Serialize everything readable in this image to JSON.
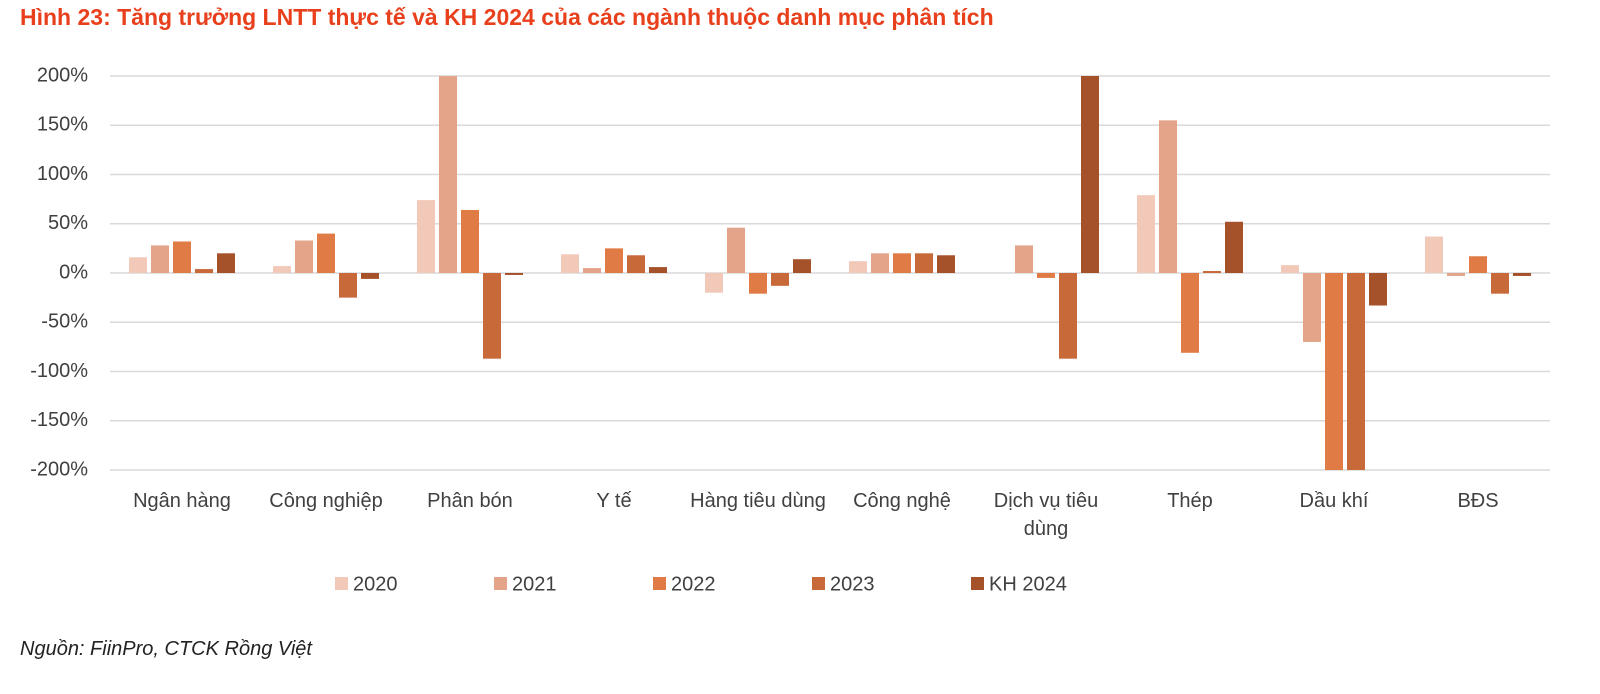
{
  "chart_data": {
    "type": "bar",
    "title": "Hình 23: Tăng trưởng LNTT thực tế và KH 2024 của các ngành thuộc danh mục phân tích",
    "source": "Nguồn: FiinPro, CTCK Rồng Việt",
    "categories": [
      "Ngân hàng",
      "Công nghiệp",
      "Phân bón",
      "Y tế",
      "Hàng tiêu dùng",
      "Công nghệ",
      "Dịch vụ tiêu dùng",
      "Thép",
      "Dầu khí",
      "BĐS"
    ],
    "series": [
      {
        "name": "2020",
        "color": "#f2c9b8",
        "values": [
          16,
          7,
          74,
          19,
          -20,
          12,
          null,
          79,
          8,
          37
        ]
      },
      {
        "name": "2021",
        "color": "#e3a48a",
        "values": [
          28,
          33,
          200,
          5,
          46,
          20,
          28,
          155,
          -70,
          -3
        ]
      },
      {
        "name": "2022",
        "color": "#e07b45",
        "values": [
          32,
          40,
          64,
          25,
          -21,
          20,
          -5,
          -81,
          -200,
          17
        ]
      },
      {
        "name": "2023",
        "color": "#c8693a",
        "values": [
          4,
          -25,
          -87,
          18,
          -13,
          20,
          -87,
          2,
          -200,
          -21
        ]
      },
      {
        "name": "KH 2024",
        "color": "#a5512a",
        "values": [
          20,
          -6,
          -2,
          6,
          14,
          18,
          200,
          52,
          -33,
          -3
        ]
      }
    ],
    "ylim": [
      -200,
      200
    ],
    "yticks": [
      {
        "value": -200,
        "label": "-200%"
      },
      {
        "value": -150,
        "label": "-150%"
      },
      {
        "value": -100,
        "label": "-100%"
      },
      {
        "value": -50,
        "label": "-50%"
      },
      {
        "value": 0,
        "label": "0%"
      },
      {
        "value": 50,
        "label": "50%"
      },
      {
        "value": 100,
        "label": "100%"
      },
      {
        "value": 150,
        "label": "150%"
      },
      {
        "value": 200,
        "label": "200%"
      }
    ],
    "grid": true
  }
}
